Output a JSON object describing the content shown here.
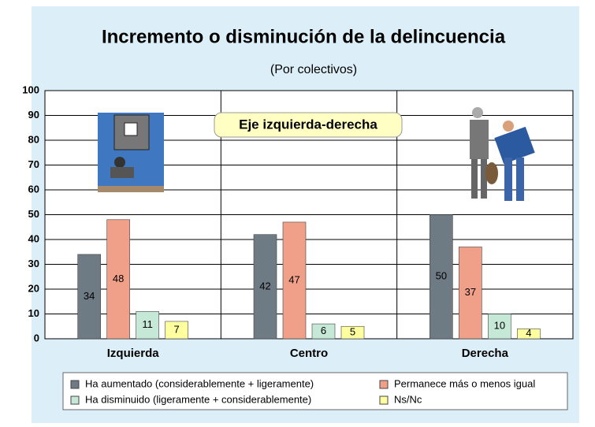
{
  "chart_data": {
    "type": "bar",
    "title": "Incremento o disminución de la delincuencia",
    "subtitle": "(Por colectivos)",
    "annotation": "Eje izquierda-derecha",
    "categories": [
      "Izquierda",
      "Centro",
      "Derecha"
    ],
    "series": [
      {
        "name": "Ha aumentado (considerablemente + ligeramente)",
        "color": "#6e7a84",
        "values": [
          34,
          42,
          50
        ]
      },
      {
        "name": "Permanece más o menos igual",
        "color": "#f0a088",
        "values": [
          48,
          47,
          37
        ]
      },
      {
        "name": "Ha disminuido (ligeramente + considerablemente)",
        "color": "#c6e8d6",
        "values": [
          11,
          6,
          10
        ]
      },
      {
        "name": "Ns/Nc",
        "color": "#ffffa0",
        "values": [
          7,
          5,
          4
        ]
      }
    ],
    "ylim": [
      0,
      100
    ],
    "yticks": [
      0,
      10,
      20,
      30,
      40,
      50,
      60,
      70,
      80,
      90,
      100
    ],
    "grid": true
  }
}
